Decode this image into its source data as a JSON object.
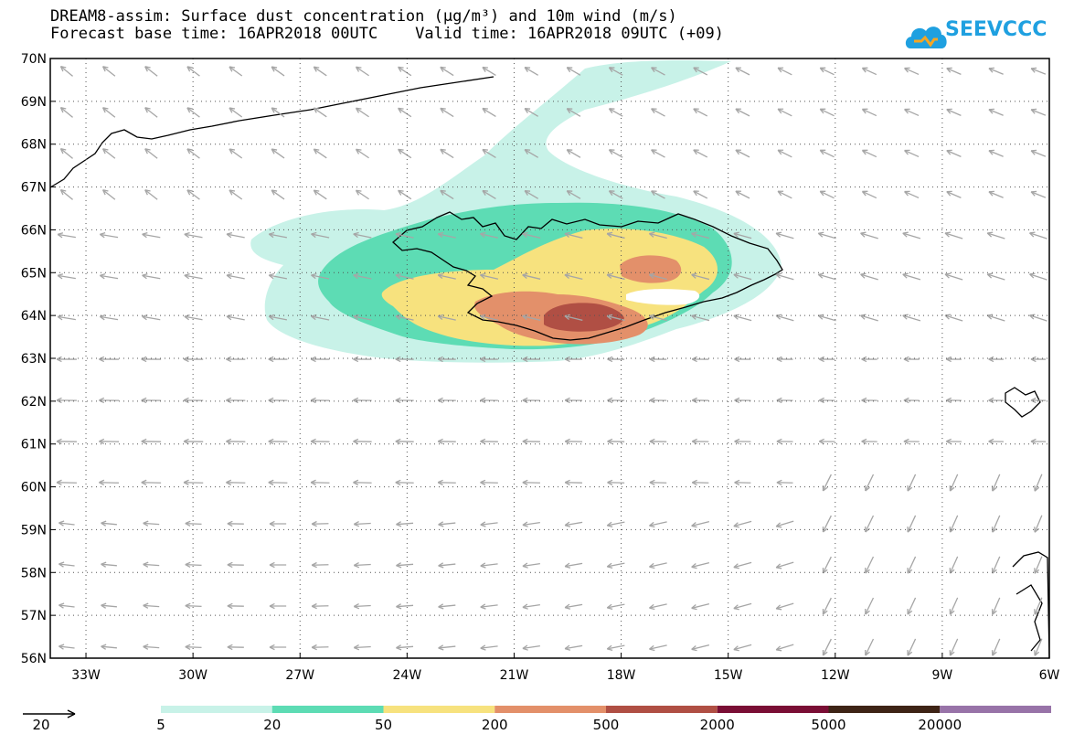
{
  "header": {
    "title_line1": "DREAM8-assim: Surface dust concentration (µg/m³) and 10m wind (m/s)",
    "title_line2": "Forecast base time: 16APR2018 00UTC    Valid time: 16APR2018 09UTC (+09)"
  },
  "logo": {
    "text": "SEEVCCC",
    "icon": "cloud-icon"
  },
  "map": {
    "lat_labels": [
      "70N",
      "69N",
      "68N",
      "67N",
      "66N",
      "65N",
      "64N",
      "63N",
      "62N",
      "61N",
      "60N",
      "59N",
      "58N",
      "57N",
      "56N"
    ],
    "lon_labels": [
      "33W",
      "30W",
      "27W",
      "24W",
      "21W",
      "18W",
      "15W",
      "12W",
      "9W",
      "6W"
    ]
  },
  "legend": {
    "wind_ref_label": "20",
    "colorbar_labels": [
      "5",
      "20",
      "50",
      "200",
      "500",
      "2000",
      "5000",
      "20000"
    ],
    "colors": [
      "#c8f2e8",
      "#5ddcb4",
      "#f7e27e",
      "#e3906a",
      "#b04f44",
      "#7a0e35",
      "#3e2416",
      "#9873a8"
    ]
  },
  "colors": {
    "wind_arrow": "#a6a6a6",
    "grid": "#555555",
    "coastline": "#000000"
  }
}
